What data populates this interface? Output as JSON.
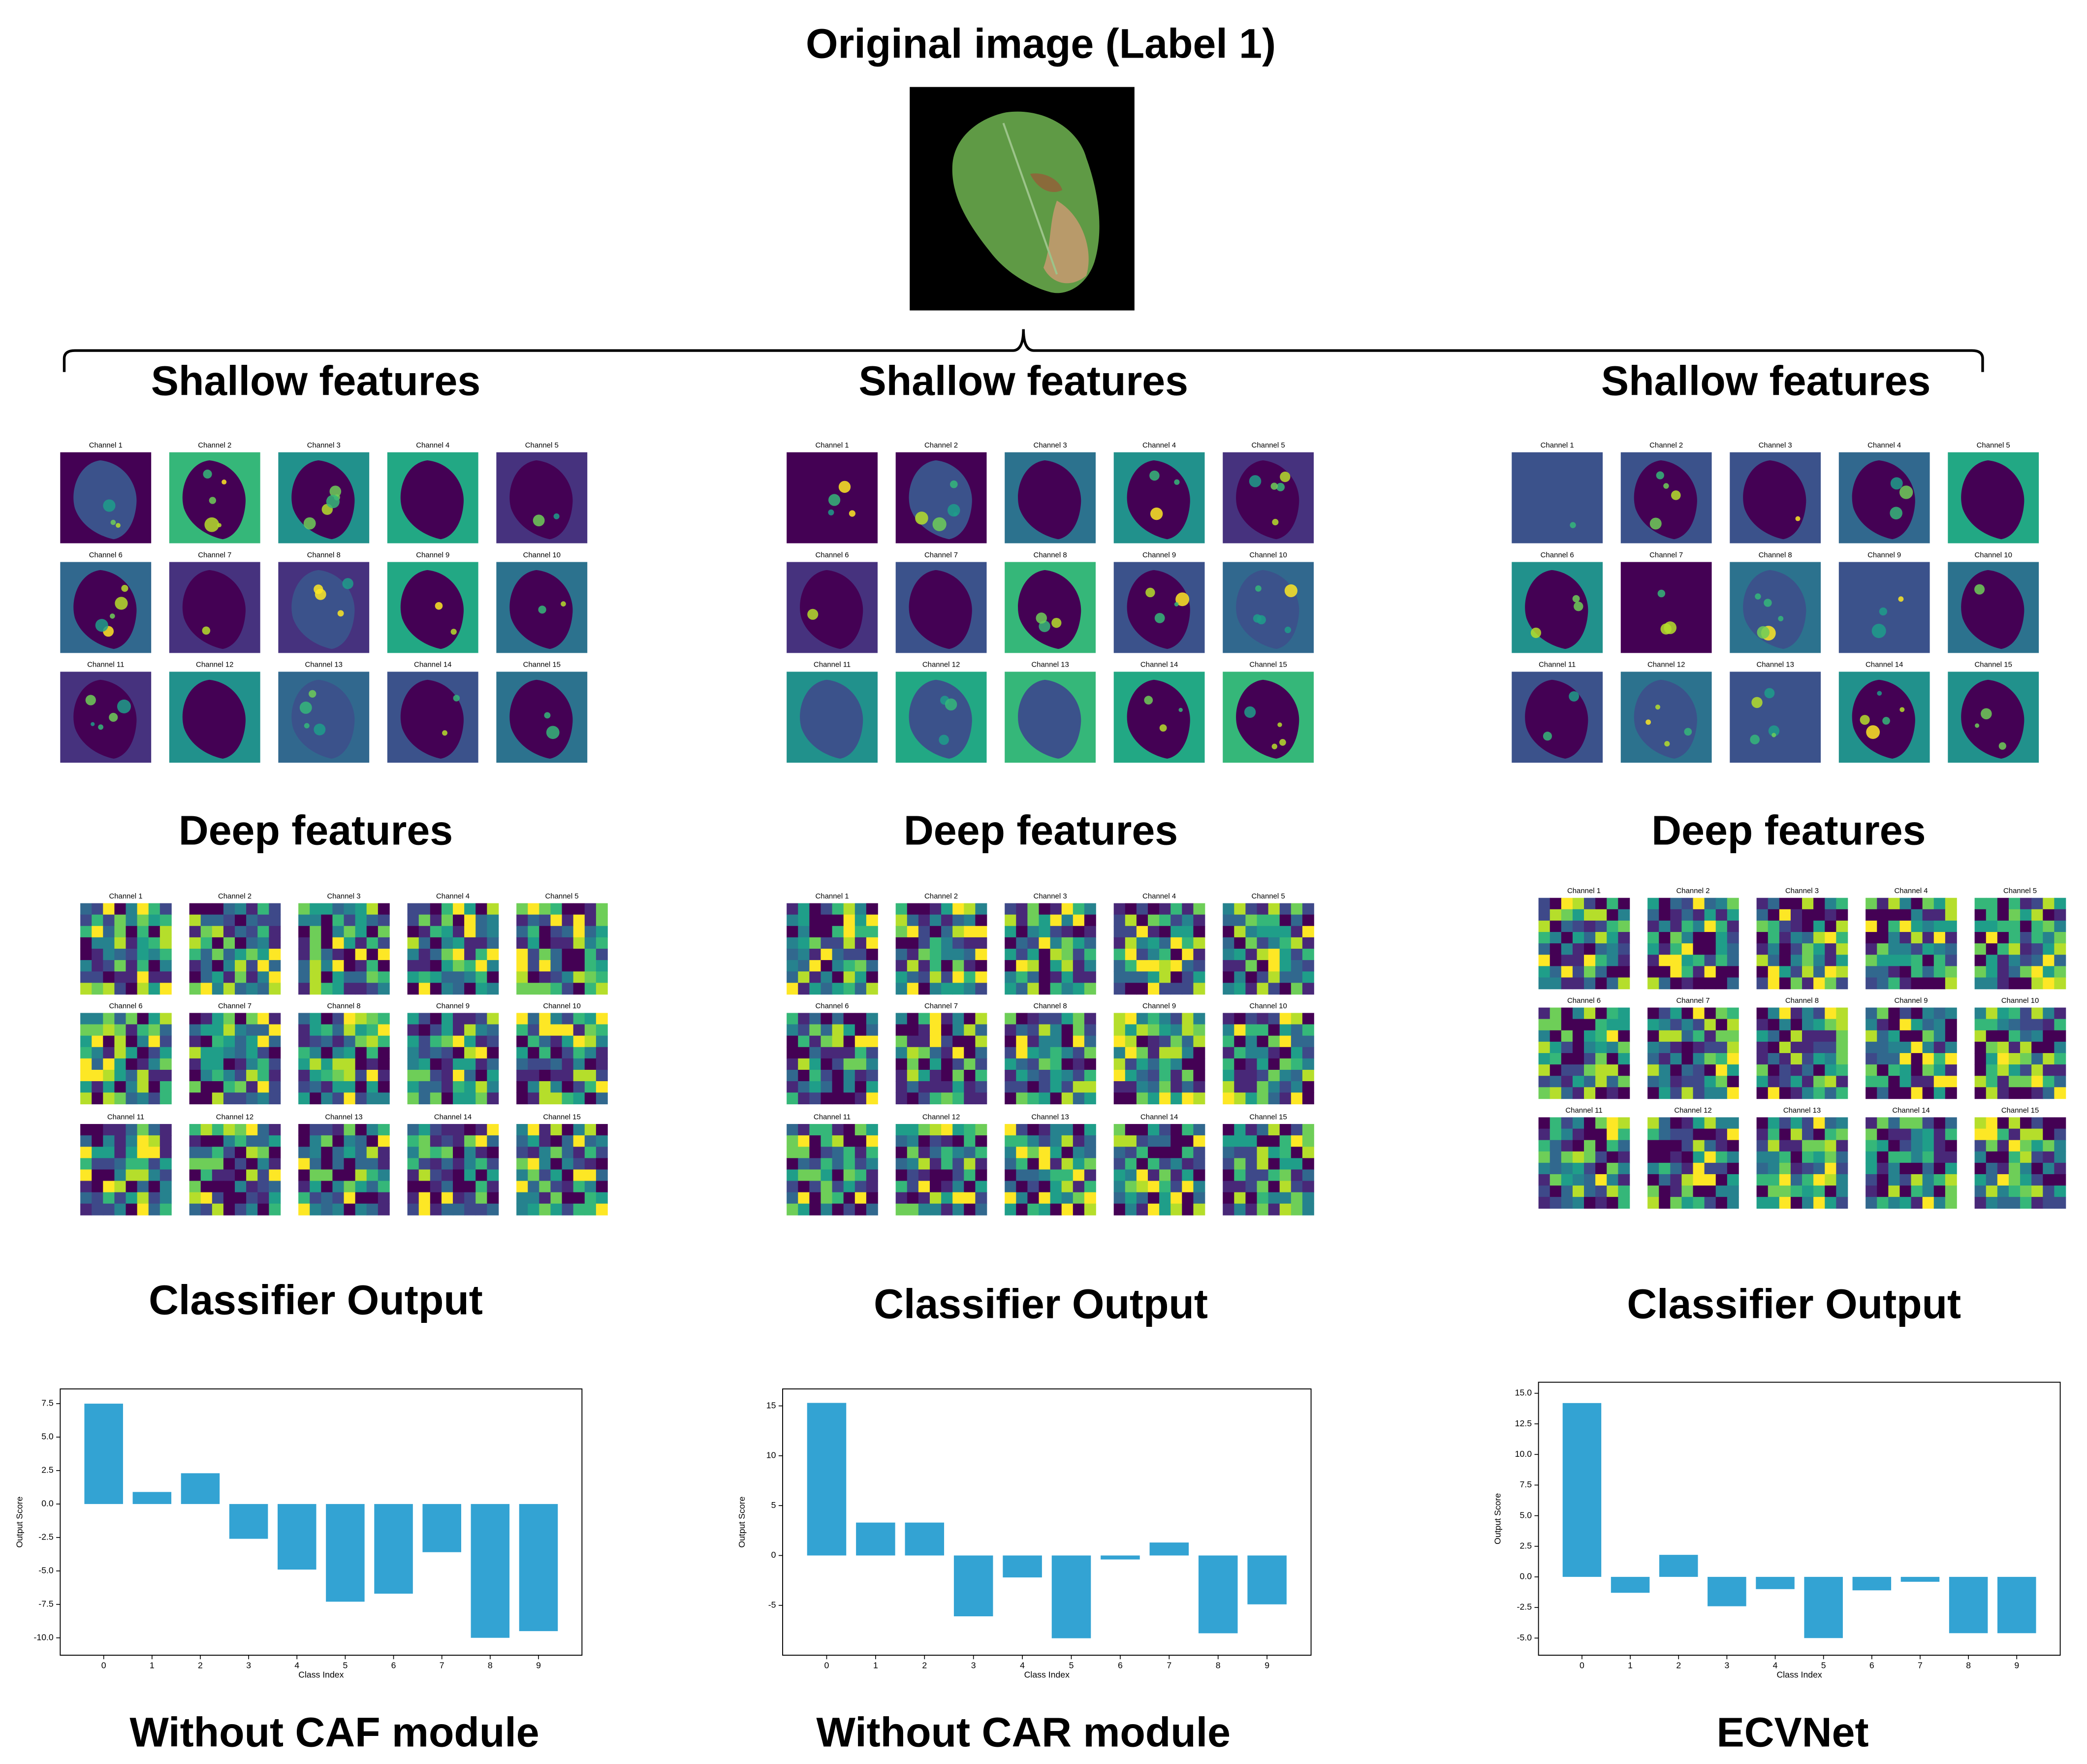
{
  "title": "Original image (Label 1)",
  "columns": [
    {
      "shallow_title": "Shallow features",
      "shallow_channels": [
        "Channel 1",
        "Channel 2",
        "Channel 3",
        "Channel 4",
        "Channel 5",
        "Channel 6",
        "Channel 7",
        "Channel 8",
        "Channel 9",
        "Channel 10",
        "Channel 11",
        "Channel 12",
        "Channel 13",
        "Channel 14",
        "Channel 15"
      ],
      "deep_title": "Deep features",
      "deep_channels": [
        "Channel 1",
        "Channel 2",
        "Channel 3",
        "Channel 4",
        "Channel 5",
        "Channel 6",
        "Channel 7",
        "Channel 8",
        "Channel 9",
        "Channel 10",
        "Channel 11",
        "Channel 12",
        "Channel 13",
        "Channel 14",
        "Channel 15"
      ],
      "classifier_title": "Classifier Output",
      "caption": "Without CAF module"
    },
    {
      "shallow_title": "Shallow features",
      "shallow_channels": [
        "Channel 1",
        "Channel 2",
        "Channel 3",
        "Channel 4",
        "Channel 5",
        "Channel 6",
        "Channel 7",
        "Channel 8",
        "Channel 9",
        "Channel 10",
        "Channel 11",
        "Channel 12",
        "Channel 13",
        "Channel 14",
        "Channel 15"
      ],
      "deep_title": "Deep features",
      "deep_channels": [
        "Channel 1",
        "Channel 2",
        "Channel 3",
        "Channel 4",
        "Channel 5",
        "Channel 6",
        "Channel 7",
        "Channel 8",
        "Channel 9",
        "Channel 10",
        "Channel 11",
        "Channel 12",
        "Channel 13",
        "Channel 14",
        "Channel 15"
      ],
      "classifier_title": "Classifier Output",
      "caption": "Without CAR module"
    },
    {
      "shallow_title": "Shallow features",
      "shallow_channels": [
        "Channel 1",
        "Channel 2",
        "Channel 3",
        "Channel 4",
        "Channel 5",
        "Channel 6",
        "Channel 7",
        "Channel 8",
        "Channel 9",
        "Channel 10",
        "Channel 11",
        "Channel 12",
        "Channel 13",
        "Channel 14",
        "Channel 15"
      ],
      "deep_title": "Deep features",
      "deep_channels": [
        "Channel 1",
        "Channel 2",
        "Channel 3",
        "Channel 4",
        "Channel 5",
        "Channel 6",
        "Channel 7",
        "Channel 8",
        "Channel 9",
        "Channel 10",
        "Channel 11",
        "Channel 12",
        "Channel 13",
        "Channel 14",
        "Channel 15"
      ],
      "classifier_title": "Classifier Output",
      "caption": "ECVNet"
    }
  ],
  "chart_data": [
    {
      "type": "bar",
      "xlabel": "Class Index",
      "ylabel": "Output Score",
      "color": "#33a3d3",
      "categories": [
        "0",
        "1",
        "2",
        "3",
        "4",
        "5",
        "6",
        "7",
        "8",
        "9"
      ],
      "values": [
        7.5,
        0.9,
        2.3,
        -2.6,
        -4.9,
        -7.3,
        -6.7,
        -3.6,
        -10.0,
        -9.5
      ],
      "ylim": [
        -11.3,
        8.6
      ],
      "yticks": [
        {
          "value": 7.5,
          "label": "7.5"
        },
        {
          "value": 5,
          "label": "5.0"
        },
        {
          "value": 2.5,
          "label": "2.5"
        },
        {
          "value": 0,
          "label": "0.0"
        },
        {
          "value": -2.5,
          "label": "-2.5"
        },
        {
          "value": -5,
          "label": "-5.0"
        },
        {
          "value": -7.5,
          "label": "-7.5"
        },
        {
          "value": -10,
          "label": "-10.0"
        }
      ]
    },
    {
      "type": "bar",
      "xlabel": "Class Index",
      "ylabel": "Output Score",
      "color": "#33a3d3",
      "categories": [
        "0",
        "1",
        "2",
        "3",
        "4",
        "5",
        "6",
        "7",
        "8",
        "9"
      ],
      "values": [
        15.3,
        3.3,
        3.3,
        -6.1,
        -2.2,
        -8.3,
        -0.4,
        1.3,
        -7.8,
        -4.9
      ],
      "ylim": [
        -10.0,
        16.7
      ],
      "yticks": [
        15,
        10,
        5,
        0,
        -5
      ]
    },
    {
      "type": "bar",
      "xlabel": "Class Index",
      "ylabel": "Output Score",
      "color": "#33a3d3",
      "categories": [
        "0",
        "1",
        "2",
        "3",
        "4",
        "5",
        "6",
        "7",
        "8",
        "9"
      ],
      "values": [
        14.2,
        -1.3,
        1.8,
        -2.4,
        -1.0,
        -5.0,
        -1.1,
        -0.4,
        -4.6,
        -4.6
      ],
      "ylim": [
        -6.4,
        15.9
      ],
      "yticks": [
        {
          "value": 15,
          "label": "15.0"
        },
        {
          "value": 12.5,
          "label": "12.5"
        },
        {
          "value": 10,
          "label": "10.0"
        },
        {
          "value": 7.5,
          "label": "7.5"
        },
        {
          "value": 5,
          "label": "5.0"
        },
        {
          "value": 2.5,
          "label": "2.5"
        },
        {
          "value": 0,
          "label": "0.0"
        },
        {
          "value": -2.5,
          "label": "-2.5"
        },
        {
          "value": -5,
          "label": "-5.0"
        }
      ]
    }
  ]
}
